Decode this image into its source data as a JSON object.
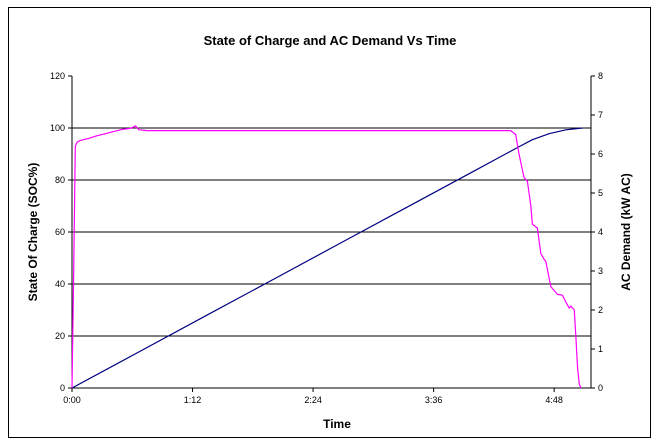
{
  "chart_data": {
    "type": "line",
    "title": "State of Charge and AC Demand Vs Time",
    "xlabel": "Time",
    "ylabel": "State Of Charge (SOC%)",
    "y2label": "AC Demand (kW AC)",
    "x_ticks": [
      "0:00",
      "1:12",
      "2:24",
      "3:36",
      "4:48"
    ],
    "x_tick_minutes": [
      0,
      72,
      144,
      216,
      288
    ],
    "xlim_minutes": [
      0,
      310
    ],
    "y_ticks": [
      0,
      20,
      40,
      60,
      80,
      100,
      120
    ],
    "ylim": [
      0,
      120
    ],
    "y2_ticks": [
      0,
      1,
      2,
      3,
      4,
      5,
      6,
      7,
      8
    ],
    "y2lim": [
      0,
      8
    ],
    "grid": "horizontal",
    "legend": "none",
    "series": [
      {
        "axis": "left",
        "color": "#000080",
        "x_minutes": [
          0,
          40,
          80,
          120,
          160,
          200,
          240,
          265,
          275,
          285,
          295,
          305
        ],
        "values": [
          0,
          13.9,
          27.8,
          41.7,
          55.6,
          69.5,
          83.4,
          92.1,
          95.5,
          97.8,
          99.3,
          100
        ]
      },
      {
        "axis": "right",
        "color": "#ff00ff",
        "x_minutes": [
          0,
          1,
          2,
          3,
          5,
          10,
          15,
          20,
          25,
          30,
          35,
          38,
          40,
          45,
          60,
          90,
          120,
          150,
          180,
          210,
          240,
          262,
          265,
          267,
          270,
          272,
          274,
          275,
          278,
          280,
          282,
          283,
          286,
          290,
          293,
          295,
          297,
          298,
          300,
          301,
          302,
          303,
          304
        ],
        "values": [
          0,
          3,
          6.2,
          6.3,
          6.35,
          6.4,
          6.47,
          6.52,
          6.58,
          6.63,
          6.66,
          6.72,
          6.62,
          6.6,
          6.6,
          6.6,
          6.6,
          6.6,
          6.6,
          6.6,
          6.6,
          6.6,
          6.5,
          6.0,
          5.4,
          5.3,
          4.7,
          4.2,
          4.1,
          3.45,
          3.3,
          3.25,
          2.6,
          2.4,
          2.38,
          2.2,
          2.05,
          2.1,
          2.0,
          1.3,
          0.5,
          0.1,
          0
        ]
      }
    ]
  }
}
